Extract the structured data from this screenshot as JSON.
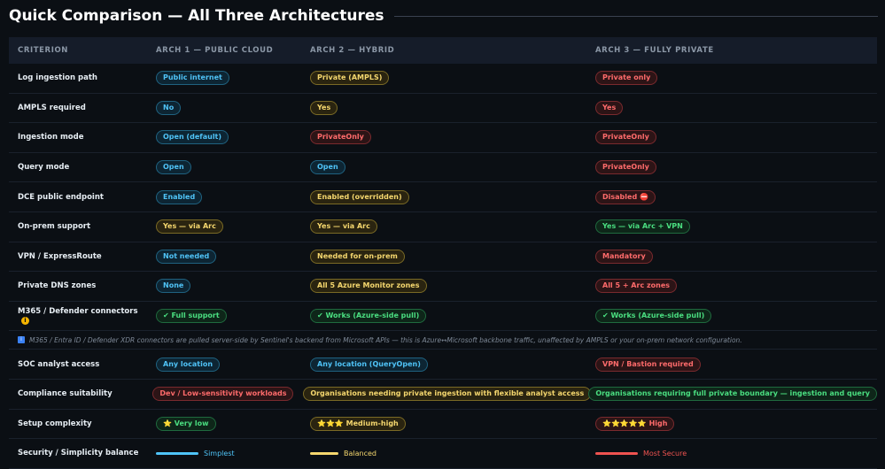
{
  "title": "Quick Comparison — All Three Architectures",
  "columns": [
    "CRITERION",
    "ARCH 1 — PUBLIC CLOUD",
    "ARCH 2 — HYBRID",
    "ARCH 3 — FULLY PRIVATE"
  ],
  "rows": [
    {
      "criterion": "Log ingestion path",
      "a1": "Public internet",
      "a1c": "blue",
      "a2": "Private (AMPLS)",
      "a2c": "yellow",
      "a3": "Private only",
      "a3c": "red"
    },
    {
      "criterion": "AMPLS required",
      "a1": "No",
      "a1c": "blue",
      "a2": "Yes",
      "a2c": "yellow",
      "a3": "Yes",
      "a3c": "red"
    },
    {
      "criterion": "Ingestion mode",
      "a1": "Open (default)",
      "a1c": "blue",
      "a2": "PrivateOnly",
      "a2c": "red",
      "a3": "PrivateOnly",
      "a3c": "red"
    },
    {
      "criterion": "Query mode",
      "a1": "Open",
      "a1c": "blue",
      "a2": "Open",
      "a2c": "blue",
      "a3": "PrivateOnly",
      "a3c": "red"
    },
    {
      "criterion": "DCE public endpoint",
      "a1": "Enabled",
      "a1c": "blue",
      "a2": "Enabled (overridden)",
      "a2c": "yellow",
      "a3": "Disabled ⛔",
      "a3c": "red"
    },
    {
      "criterion": "On-prem support",
      "a1": "Yes — via Arc",
      "a1c": "yellow",
      "a2": "Yes — via Arc",
      "a2c": "yellow",
      "a3": "Yes — via Arc + VPN",
      "a3c": "green"
    },
    {
      "criterion": "VPN / ExpressRoute",
      "a1": "Not needed",
      "a1c": "blue",
      "a2": "Needed for on-prem",
      "a2c": "yellow",
      "a3": "Mandatory",
      "a3c": "red"
    },
    {
      "criterion": "Private DNS zones",
      "a1": "None",
      "a1c": "blue",
      "a2": "All 5 Azure Monitor zones",
      "a2c": "yellow",
      "a3": "All 5 + Arc zones",
      "a3c": "red"
    },
    {
      "criterion": "M365 / Defender connectors",
      "info": "i",
      "a1": "✔ Full support",
      "a1c": "green",
      "a2": "✔ Works (Azure-side pull)",
      "a2c": "green",
      "a3": "✔ Works (Azure-side pull)",
      "a3c": "green"
    }
  ],
  "note": {
    "icon": "i",
    "text": "M365 / Entra ID / Defender XDR connectors are pulled server-side by Sentinel's backend from Microsoft APIs — this is Azure↔Microsoft backbone traffic, unaffected by AMPLS or your on-prem network configuration."
  },
  "rows2": [
    {
      "criterion": "SOC analyst access",
      "a1": "Any location",
      "a1c": "blue",
      "a2": "Any location (QueryOpen)",
      "a2c": "blue",
      "a3": "VPN / Bastion required",
      "a3c": "red"
    },
    {
      "criterion": "Compliance suitability",
      "a1": "Dev / Low-sensitivity workloads",
      "a1c": "red",
      "a2": "Organisations needing private ingestion with flexible analyst access",
      "a2c": "yellow",
      "a3": "Organisations requiring full private boundary — ingestion and query",
      "a3c": "green"
    },
    {
      "criterion": "Setup complexity",
      "a1": "⭐ Very low",
      "a1c": "green",
      "a2": "⭐⭐⭐ Medium-high",
      "a2c": "yellow",
      "a3": "⭐⭐⭐⭐⭐ High",
      "a3c": "red"
    }
  ],
  "balance": {
    "criterion": "Security / Simplicity balance",
    "a1": {
      "label": "Simplest",
      "color": "#4fc3f7",
      "level": 0.4
    },
    "a2": {
      "label": "Balanced",
      "color": "#f5d76e",
      "level": 0.27
    },
    "a3": {
      "label": "Most Secure",
      "color": "#ef5350",
      "level": 0.4
    }
  }
}
